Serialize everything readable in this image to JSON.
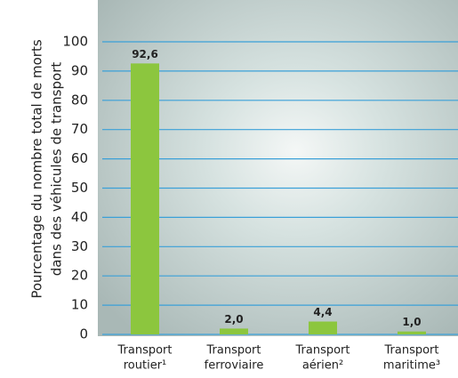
{
  "chart_data": {
    "type": "bar",
    "y_label": [
      "Pourcentage du nombre total de morts",
      "dans des véhicules de transport"
    ],
    "categories": [
      [
        "Transport",
        "routier¹"
      ],
      [
        "Transport",
        "ferroviaire"
      ],
      [
        "Transport",
        "aérien²"
      ],
      [
        "Transport",
        "maritime³"
      ]
    ],
    "values": [
      92.6,
      2.0,
      4.4,
      1.0
    ],
    "value_labels": [
      "92,6",
      "2,0",
      "4,4",
      "1,0"
    ],
    "color": "#8cc63e",
    "ylim": [
      0,
      100
    ],
    "yticks": [
      0,
      10,
      20,
      30,
      40,
      50,
      60,
      70,
      80,
      90,
      100
    ],
    "grid": true
  }
}
